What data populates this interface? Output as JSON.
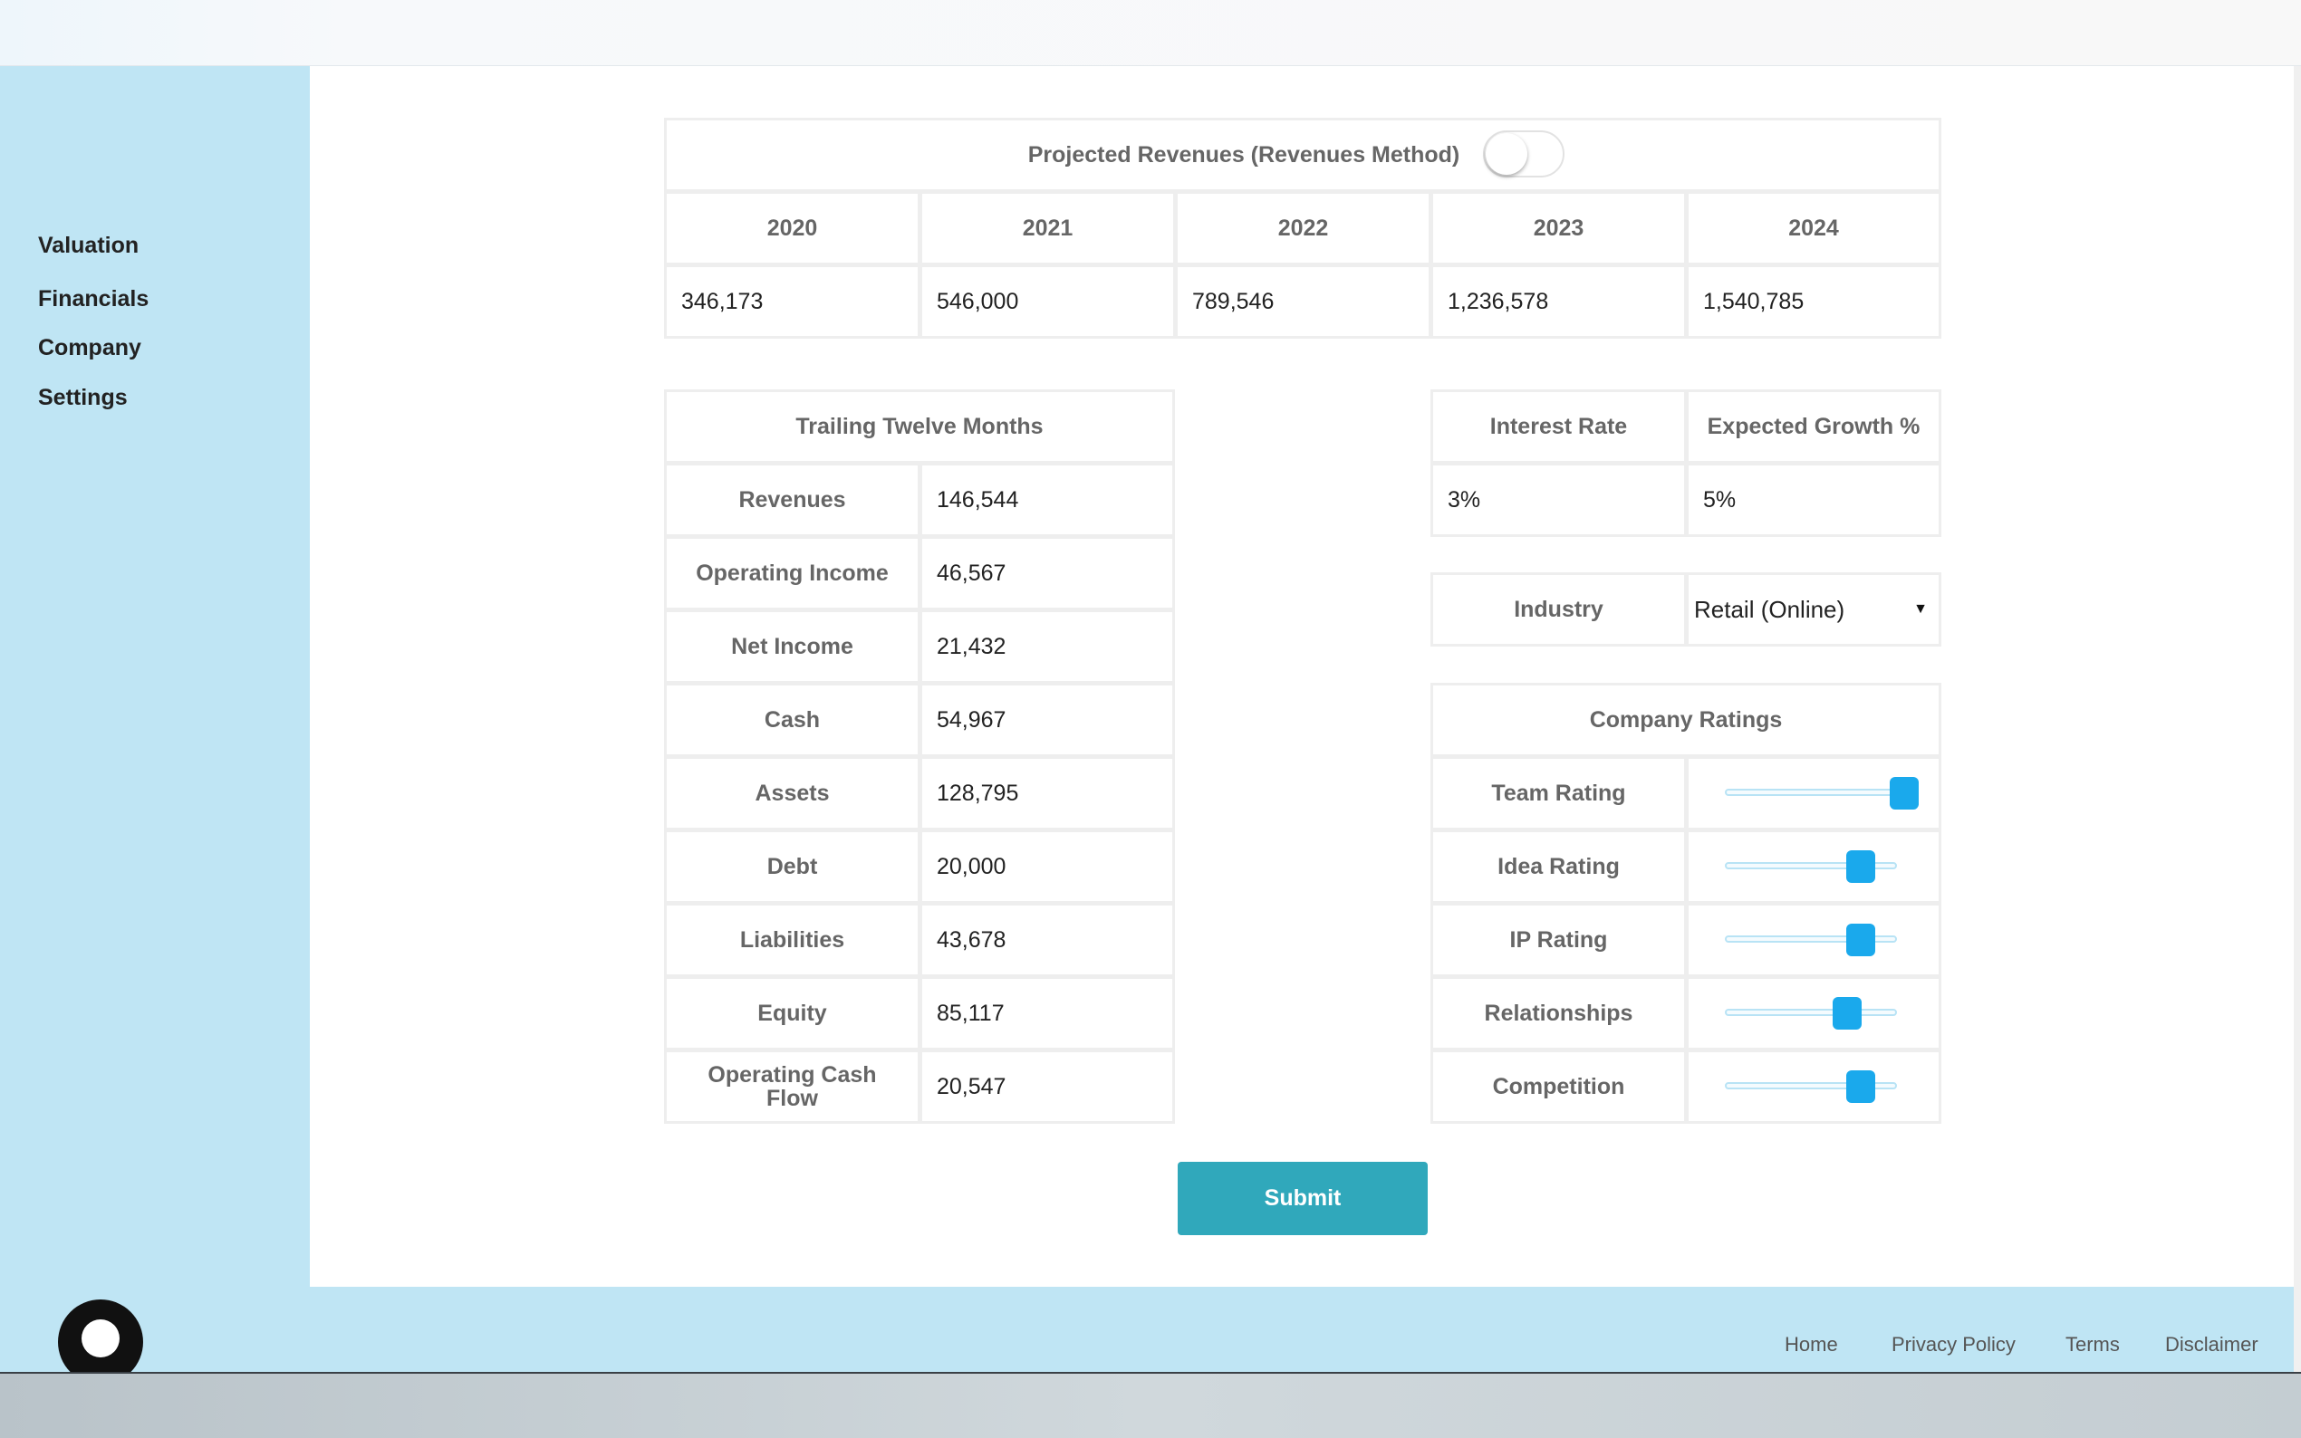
{
  "sidebar": {
    "items": [
      {
        "label": "Valuation"
      },
      {
        "label": "Financials"
      },
      {
        "label": "Company"
      },
      {
        "label": "Settings"
      }
    ]
  },
  "projected": {
    "title": "Projected Revenues (Revenues Method)",
    "toggle_on": false,
    "years": [
      "2020",
      "2021",
      "2022",
      "2023",
      "2024"
    ],
    "values": [
      "346,173",
      "546,000",
      "789,546",
      "1,236,578",
      "1,540,785"
    ]
  },
  "ttm": {
    "title": "Trailing Twelve Months",
    "rows": [
      {
        "label": "Revenues",
        "value": "146,544"
      },
      {
        "label": "Operating Income",
        "value": "46,567"
      },
      {
        "label": "Net Income",
        "value": "21,432"
      },
      {
        "label": "Cash",
        "value": "54,967"
      },
      {
        "label": "Assets",
        "value": "128,795"
      },
      {
        "label": "Debt",
        "value": "20,000"
      },
      {
        "label": "Liabilities",
        "value": "43,678"
      },
      {
        "label": "Equity",
        "value": "85,117"
      },
      {
        "label": "Operating Cash Flow",
        "value": "20,547"
      }
    ]
  },
  "rates": {
    "interest_label": "Interest Rate",
    "growth_label": "Expected Growth %",
    "interest_value": "3%",
    "growth_value": "5%"
  },
  "industry": {
    "label": "Industry",
    "selected": "Retail (Online)"
  },
  "ratings": {
    "title": "Company Ratings",
    "items": [
      {
        "label": "Team Rating",
        "level": 1.0
      },
      {
        "label": "Idea Rating",
        "level": 0.8
      },
      {
        "label": "IP Rating",
        "level": 0.8
      },
      {
        "label": "Relationships",
        "level": 0.7
      },
      {
        "label": "Competition",
        "level": 0.8
      }
    ]
  },
  "submit_label": "Submit",
  "footer": {
    "links": [
      "Home",
      "Privacy Policy",
      "Terms",
      "Disclaimer"
    ]
  },
  "colors": {
    "sidebar_bg": "#bfe5f4",
    "accent": "#30a8bb",
    "slider_thumb": "#1aa9ec"
  }
}
